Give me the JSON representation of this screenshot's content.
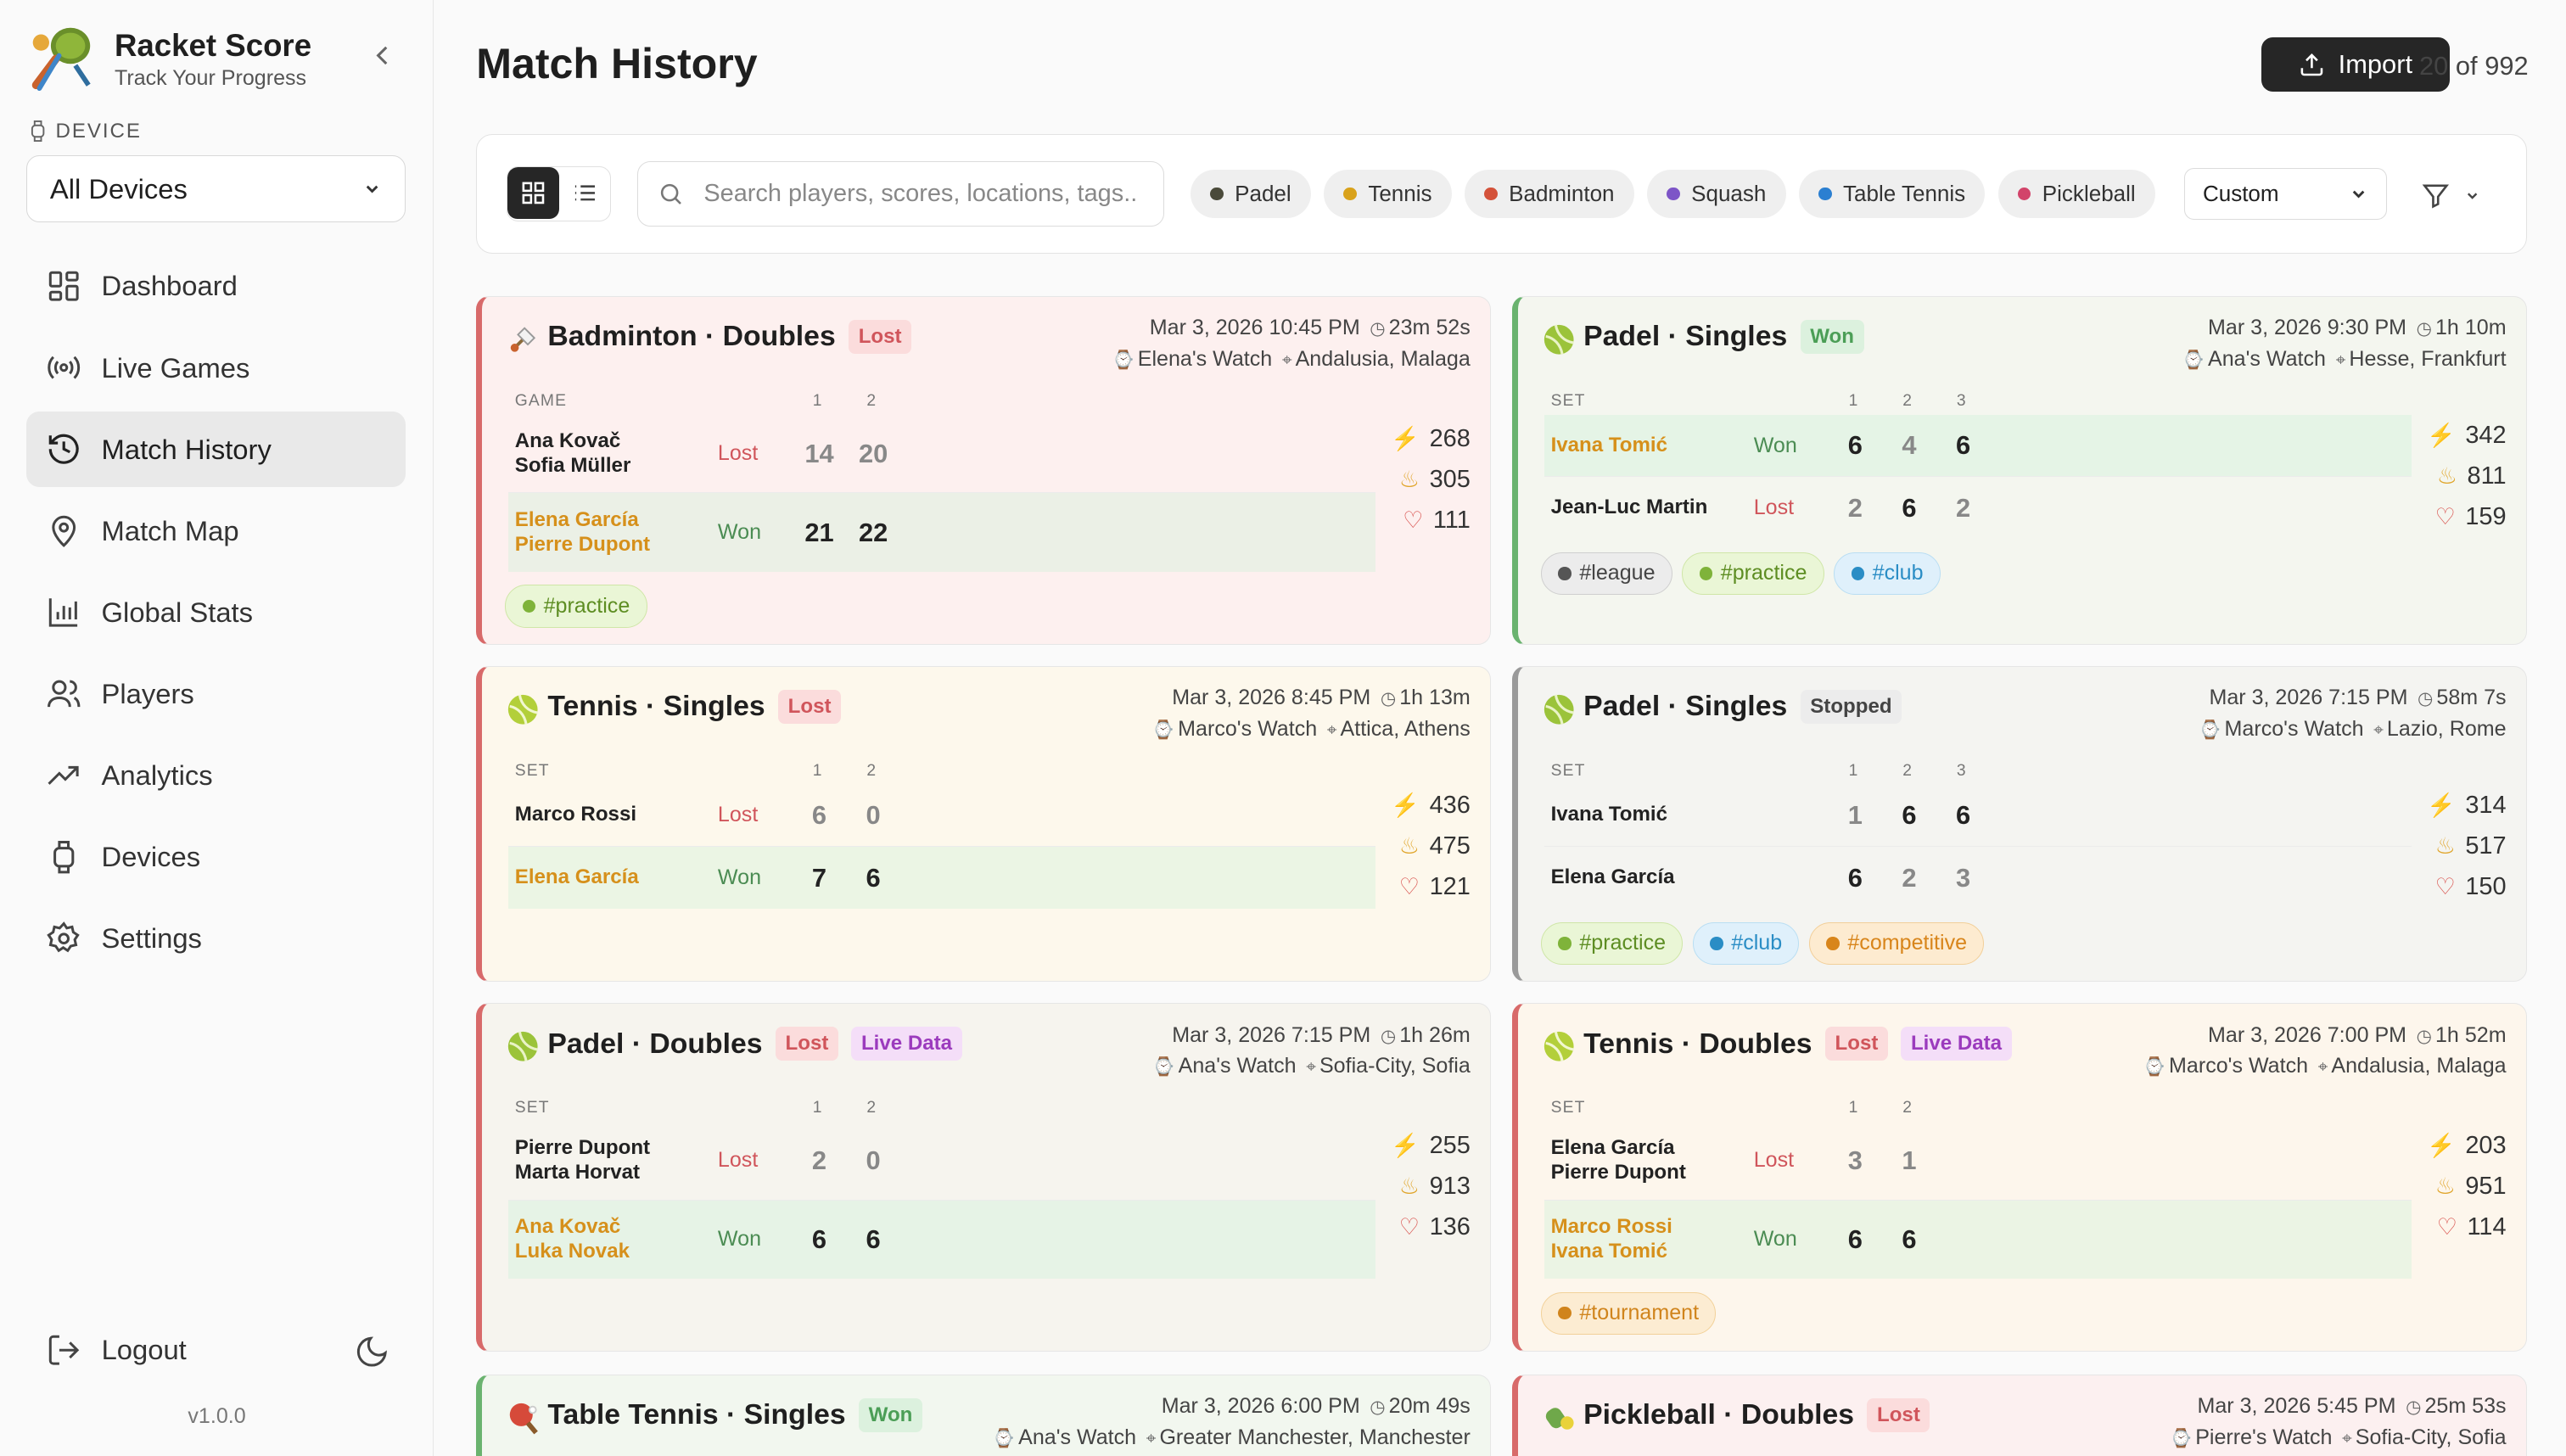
{
  "brand": {
    "title": "Racket Score",
    "subtitle": "Track Your Progress"
  },
  "sidebar": {
    "device_label": "DEVICE",
    "device_value": "All Devices",
    "items": [
      {
        "label": "Dashboard"
      },
      {
        "label": "Live Games"
      },
      {
        "label": "Match History"
      },
      {
        "label": "Match Map"
      },
      {
        "label": "Global Stats"
      },
      {
        "label": "Players"
      },
      {
        "label": "Analytics"
      },
      {
        "label": "Devices"
      },
      {
        "label": "Settings"
      }
    ],
    "logout": "Logout",
    "version": "v1.0.0"
  },
  "header": {
    "title": "Match History",
    "import_label": "Import",
    "count": "20 of 992"
  },
  "filters": {
    "search_placeholder": "Search players, scores, locations, tags...",
    "chips": [
      {
        "label": "Padel",
        "color": "#4a4a3a"
      },
      {
        "label": "Tennis",
        "color": "#d9a21b"
      },
      {
        "label": "Badminton",
        "color": "#d4523a"
      },
      {
        "label": "Squash",
        "color": "#7d55c7"
      },
      {
        "label": "Table Tennis",
        "color": "#2b7fd1"
      },
      {
        "label": "Pickleball",
        "color": "#d2436a"
      }
    ],
    "sort_value": "Custom"
  },
  "colors": {
    "lost_border": "#d86a6a",
    "won_border": "#6ab36f",
    "stopped_border": "#9a9a9a"
  },
  "matches": [
    {
      "title": "Badminton · Doubles",
      "status": "Lost",
      "live": "",
      "date": "Mar 3, 2026 10:45 PM",
      "duration": "23m 52s",
      "watch": "Elena's Watch",
      "location": "Andalusia, Malaga",
      "col_label": "GAME",
      "cols": [
        "1",
        "2"
      ],
      "teams": [
        {
          "players": [
            "Ana Kovač",
            "Sofia Müller"
          ],
          "result": "Lost",
          "scores": [
            "14",
            "20"
          ]
        },
        {
          "players": [
            "Elena García",
            "Pierre Dupont"
          ],
          "result": "Won",
          "scores": [
            "21",
            "22"
          ]
        }
      ],
      "stats": {
        "energy": "268",
        "calories": "305",
        "heart": "111"
      },
      "tags": [
        "#practice"
      ]
    },
    {
      "title": "Padel · Singles",
      "status": "Won",
      "live": "",
      "date": "Mar 3, 2026 9:30 PM",
      "duration": "1h 10m",
      "watch": "Ana's Watch",
      "location": "Hesse, Frankfurt",
      "col_label": "SET",
      "cols": [
        "1",
        "2",
        "3"
      ],
      "teams": [
        {
          "players": [
            "Ivana Tomić"
          ],
          "result": "Won",
          "scores": [
            "6",
            "4",
            "6"
          ]
        },
        {
          "players": [
            "Jean-Luc Martin"
          ],
          "result": "Lost",
          "scores": [
            "2",
            "6",
            "2"
          ]
        }
      ],
      "stats": {
        "energy": "342",
        "calories": "811",
        "heart": "159"
      },
      "tags": [
        "#league",
        "#practice",
        "#club"
      ]
    },
    {
      "title": "Tennis · Singles",
      "status": "Lost",
      "live": "",
      "date": "Mar 3, 2026 8:45 PM",
      "duration": "1h 13m",
      "watch": "Marco's Watch",
      "location": "Attica, Athens",
      "col_label": "SET",
      "cols": [
        "1",
        "2"
      ],
      "teams": [
        {
          "players": [
            "Marco Rossi"
          ],
          "result": "Lost",
          "scores": [
            "6",
            "0"
          ]
        },
        {
          "players": [
            "Elena García"
          ],
          "result": "Won",
          "scores": [
            "7",
            "6"
          ]
        }
      ],
      "stats": {
        "energy": "436",
        "calories": "475",
        "heart": "121"
      },
      "tags": []
    },
    {
      "title": "Padel · Singles",
      "status": "Stopped",
      "live": "",
      "date": "Mar 3, 2026 7:15 PM",
      "duration": "58m 7s",
      "watch": "Marco's Watch",
      "location": "Lazio, Rome",
      "col_label": "SET",
      "cols": [
        "1",
        "2",
        "3"
      ],
      "teams": [
        {
          "players": [
            "Ivana Tomić"
          ],
          "result": "",
          "scores": [
            "1",
            "6",
            "6"
          ]
        },
        {
          "players": [
            "Elena García"
          ],
          "result": "",
          "scores": [
            "6",
            "2",
            "3"
          ]
        }
      ],
      "stats": {
        "energy": "314",
        "calories": "517",
        "heart": "150"
      },
      "tags": [
        "#practice",
        "#club",
        "#competitive"
      ]
    },
    {
      "title": "Padel · Doubles",
      "status": "Lost",
      "live": "Live Data",
      "date": "Mar 3, 2026 7:15 PM",
      "duration": "1h 26m",
      "watch": "Ana's Watch",
      "location": "Sofia-City, Sofia",
      "col_label": "SET",
      "cols": [
        "1",
        "2"
      ],
      "teams": [
        {
          "players": [
            "Pierre Dupont",
            "Marta Horvat"
          ],
          "result": "Lost",
          "scores": [
            "2",
            "0"
          ]
        },
        {
          "players": [
            "Ana Kovač",
            "Luka Novak"
          ],
          "result": "Won",
          "scores": [
            "6",
            "6"
          ]
        }
      ],
      "stats": {
        "energy": "255",
        "calories": "913",
        "heart": "136"
      },
      "tags": []
    },
    {
      "title": "Tennis · Doubles",
      "status": "Lost",
      "live": "Live Data",
      "date": "Mar 3, 2026 7:00 PM",
      "duration": "1h 52m",
      "watch": "Marco's Watch",
      "location": "Andalusia, Malaga",
      "col_label": "SET",
      "cols": [
        "1",
        "2"
      ],
      "teams": [
        {
          "players": [
            "Elena García",
            "Pierre Dupont"
          ],
          "result": "Lost",
          "scores": [
            "3",
            "1"
          ]
        },
        {
          "players": [
            "Marco Rossi",
            "Ivana Tomić"
          ],
          "result": "Won",
          "scores": [
            "6",
            "6"
          ]
        }
      ],
      "stats": {
        "energy": "203",
        "calories": "951",
        "heart": "114"
      },
      "tags": [
        "#tournament"
      ]
    },
    {
      "title": "Table Tennis · Singles",
      "status": "Won",
      "live": "",
      "date": "Mar 3, 2026 6:00 PM",
      "duration": "20m 49s",
      "watch": "Ana's Watch",
      "location": "Greater Manchester, Manchester",
      "col_label": "",
      "cols": [],
      "teams": [],
      "stats": {
        "energy": "",
        "calories": "",
        "heart": ""
      },
      "tags": []
    },
    {
      "title": "Pickleball · Doubles",
      "status": "Lost",
      "live": "",
      "date": "Mar 3, 2026 5:45 PM",
      "duration": "25m 53s",
      "watch": "Pierre's Watch",
      "location": "Sofia-City, Sofia",
      "col_label": "",
      "cols": [],
      "teams": [],
      "stats": {
        "energy": "",
        "calories": "",
        "heart": ""
      },
      "tags": []
    }
  ]
}
